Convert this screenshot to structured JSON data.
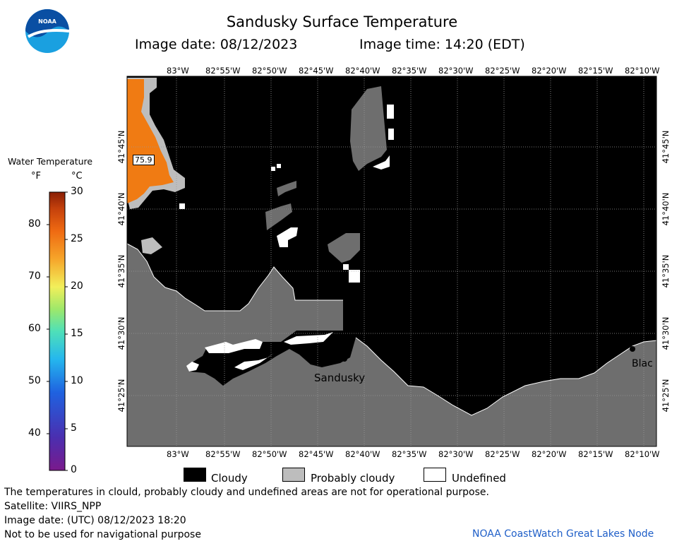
{
  "title": "Sandusky Surface Temperature",
  "image_date_line": "Image date: 08/12/2023",
  "image_time_line": "Image time: 14:20 (EDT)",
  "logo": {
    "text": "NOAA",
    "colors": [
      "#0a4fa3",
      "#1aa0e0"
    ]
  },
  "map": {
    "lon_labels": [
      "83°W",
      "82°55'W",
      "82°50'W",
      "82°45'W",
      "82°40'W",
      "82°35'W",
      "82°30'W",
      "82°25'W",
      "82°20'W",
      "82°15'W",
      "82°10'W"
    ],
    "lat_labels": [
      "41°45'N",
      "41°40'N",
      "41°35'N",
      "41°30'N",
      "41°25'N"
    ],
    "place_labels": {
      "sandusky": "Sandusky",
      "black": "Blac"
    },
    "cursor_value": "75.9",
    "colors": {
      "cloudy": "#000000",
      "land": "#6e6e6e",
      "probably_cloudy": "#bdbdbd",
      "warm_water": "#f07b13",
      "undefined": "#ffffff"
    }
  },
  "colorbar": {
    "title": "Water Temperature",
    "unit_f": "°F",
    "unit_c": "°C",
    "f_labels": [
      "80",
      "70",
      "60",
      "50",
      "40"
    ],
    "c_labels": [
      "30",
      "25",
      "20",
      "15",
      "10",
      "5",
      "0"
    ]
  },
  "legend": {
    "cloudy": "Cloudy",
    "probably_cloudy": "Probably cloudy",
    "undefined": "Undefined"
  },
  "notes": {
    "line1": "The temperatures in clould, probably cloudy and undefined areas are not for operational purpose.",
    "line2": "Satellite: VIIRS_NPP",
    "line3": "Image date: (UTC) 08/12/2023  18:20",
    "line4": "Not to be used for navigational purpose"
  },
  "credit": "NOAA CoastWatch Great Lakes Node"
}
